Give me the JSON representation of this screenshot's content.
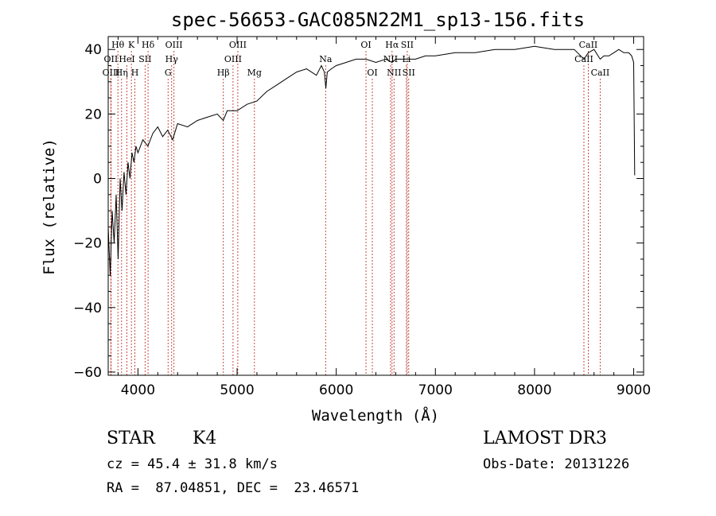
{
  "chart_data": {
    "type": "line",
    "title": "spec-56653-GAC085N22M1_sp13-156.fits",
    "xlabel": "Wavelength (Å)",
    "ylabel": "Flux (relative)",
    "xlim": [
      3700,
      9100
    ],
    "ylim": [
      -61,
      44
    ],
    "xticks": [
      4000,
      5000,
      6000,
      7000,
      8000,
      9000
    ],
    "yticks": [
      -60,
      -40,
      -20,
      0,
      20,
      40
    ],
    "series": [
      {
        "name": "flux",
        "x": [
          3700,
          3720,
          3740,
          3760,
          3780,
          3800,
          3820,
          3840,
          3860,
          3880,
          3900,
          3920,
          3940,
          3960,
          3980,
          4000,
          4050,
          4100,
          4150,
          4200,
          4250,
          4300,
          4350,
          4400,
          4500,
          4600,
          4700,
          4800,
          4860,
          4900,
          5000,
          5100,
          5200,
          5300,
          5400,
          5500,
          5600,
          5700,
          5800,
          5850,
          5880,
          5895,
          5910,
          5950,
          6000,
          6100,
          6200,
          6300,
          6400,
          6500,
          6563,
          6600,
          6700,
          6800,
          6900,
          7000,
          7200,
          7400,
          7600,
          7800,
          8000,
          8200,
          8400,
          8498,
          8542,
          8600,
          8662,
          8700,
          8750,
          8800,
          8850,
          8900,
          8950,
          8980,
          9000,
          9010
        ],
        "y": [
          -15,
          -30,
          -10,
          -20,
          -5,
          -25,
          0,
          -10,
          2,
          -5,
          5,
          0,
          8,
          5,
          10,
          8,
          12,
          10,
          14,
          16,
          13,
          15,
          12,
          17,
          16,
          18,
          19,
          20,
          18,
          21,
          21,
          23,
          24,
          27,
          29,
          31,
          33,
          34,
          32,
          35,
          33,
          28,
          33,
          34,
          35,
          36,
          37,
          37,
          36,
          37,
          36,
          37,
          37,
          37,
          38,
          38,
          39,
          39,
          40,
          40,
          41,
          40,
          40,
          37,
          39,
          40,
          37,
          38,
          38,
          39,
          40,
          39,
          39,
          38,
          36,
          1
        ]
      }
    ],
    "lines": [
      {
        "label": "Hθ",
        "wave": 3798,
        "row": 0
      },
      {
        "label": "OII",
        "wave": 3727,
        "row": 1
      },
      {
        "label": "OIII",
        "wave": 3729,
        "row": 2
      },
      {
        "label": "K",
        "wave": 3934,
        "row": 0
      },
      {
        "label": "Hδ",
        "wave": 4102,
        "row": 0
      },
      {
        "label": "HeI",
        "wave": 3889,
        "row": 1
      },
      {
        "label": "SII",
        "wave": 4072,
        "row": 1
      },
      {
        "label": "Hη",
        "wave": 3835,
        "row": 2
      },
      {
        "label": "H",
        "wave": 3969,
        "row": 2
      },
      {
        "label": "OIII",
        "wave": 4363,
        "row": 0
      },
      {
        "label": "Hγ",
        "wave": 4340,
        "row": 1
      },
      {
        "label": "G",
        "wave": 4304,
        "row": 2
      },
      {
        "label": "OIII",
        "wave": 5007,
        "row": 0
      },
      {
        "label": "OIII",
        "wave": 4959,
        "row": 1
      },
      {
        "label": "Hβ",
        "wave": 4861,
        "row": 2
      },
      {
        "label": "Mg",
        "wave": 5175,
        "row": 2
      },
      {
        "label": "Na",
        "wave": 5893,
        "row": 1
      },
      {
        "label": "OI",
        "wave": 6300,
        "row": 0
      },
      {
        "label": "OI",
        "wave": 6364,
        "row": 2
      },
      {
        "label": "Hα",
        "wave": 6563,
        "row": 0
      },
      {
        "label": "SII",
        "wave": 6716,
        "row": 0
      },
      {
        "label": "NII",
        "wave": 6548,
        "row": 1
      },
      {
        "label": "Li",
        "wave": 6708,
        "row": 1
      },
      {
        "label": "NII",
        "wave": 6583,
        "row": 2
      },
      {
        "label": "SII",
        "wave": 6731,
        "row": 2
      },
      {
        "label": "CaII",
        "wave": 8542,
        "row": 0
      },
      {
        "label": "CaII",
        "wave": 8498,
        "row": 1
      },
      {
        "label": "CaII",
        "wave": 8662,
        "row": 2
      }
    ]
  },
  "info": {
    "class_label": "STAR",
    "subclass_label": "K4",
    "survey_label": "LAMOST DR3",
    "cz_text": "cz = 45.4 ± 31.8 km/s",
    "obs_date_text": "Obs-Date: 20131226",
    "coords_text": "RA =  87.04851, DEC =  23.46571"
  }
}
